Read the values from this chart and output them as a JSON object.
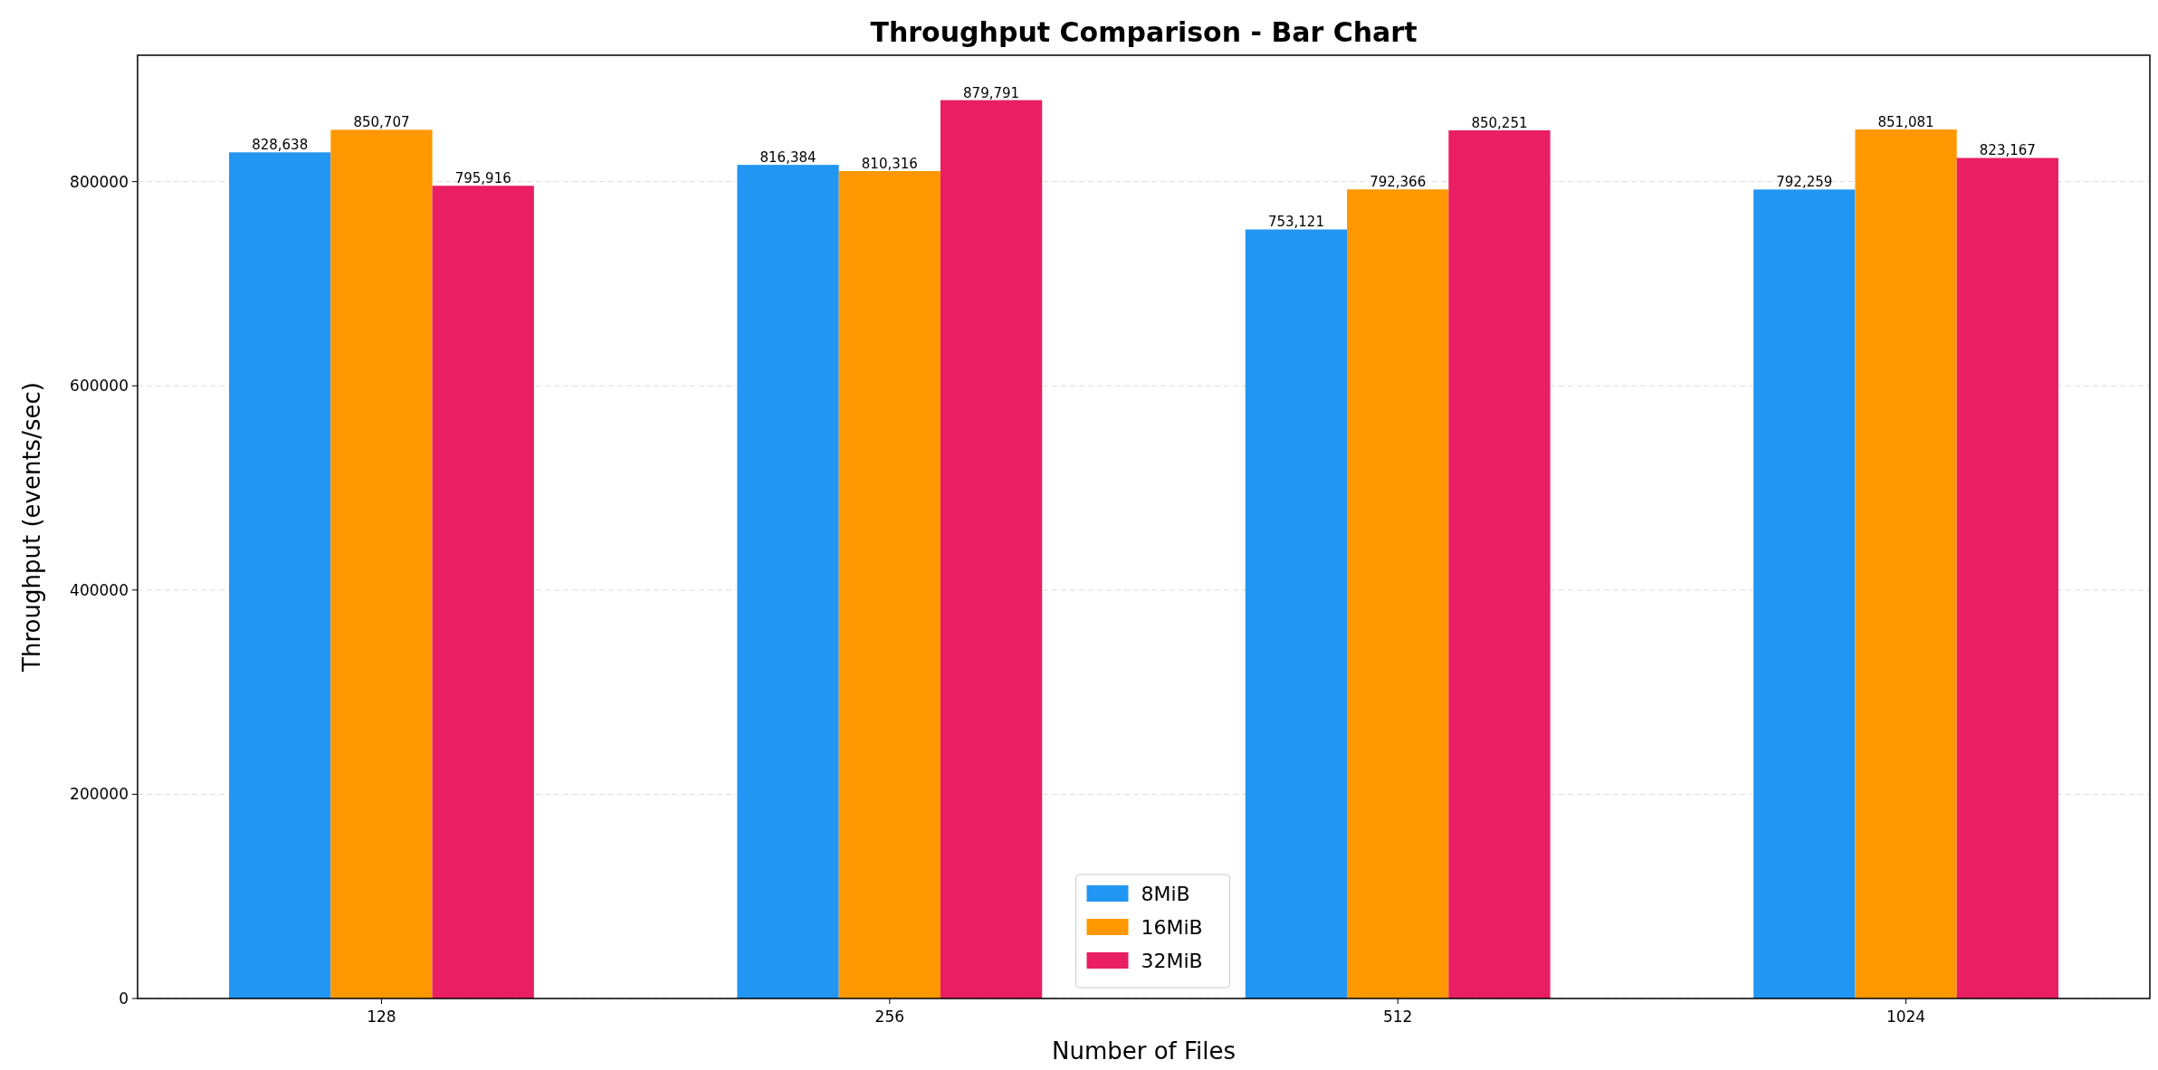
{
  "chart_data": {
    "type": "bar",
    "title": "Throughput Comparison - Bar Chart",
    "xlabel": "Number of Files",
    "ylabel": "Throughput (events/sec)",
    "categories": [
      "128",
      "256",
      "512",
      "1024"
    ],
    "series": [
      {
        "name": "8MiB",
        "color": "#2196f3",
        "values": [
          828638,
          816384,
          753121,
          792259
        ],
        "value_labels": [
          "828,638",
          "816,384",
          "753,121",
          "792,259"
        ]
      },
      {
        "name": "16MiB",
        "color": "#ff9800",
        "values": [
          850707,
          810316,
          792366,
          851081
        ],
        "value_labels": [
          "850,707",
          "810,316",
          "792,366",
          "851,081"
        ]
      },
      {
        "name": "32MiB",
        "color": "#e91e63",
        "values": [
          795916,
          879791,
          850251,
          823167
        ],
        "value_labels": [
          "795,916",
          "879,791",
          "850,251",
          "823,167"
        ]
      }
    ],
    "ylim": [
      0,
      923781
    ],
    "yticks": [
      0,
      200000,
      400000,
      600000,
      800000
    ],
    "grid": "y",
    "legend": "bottom"
  }
}
